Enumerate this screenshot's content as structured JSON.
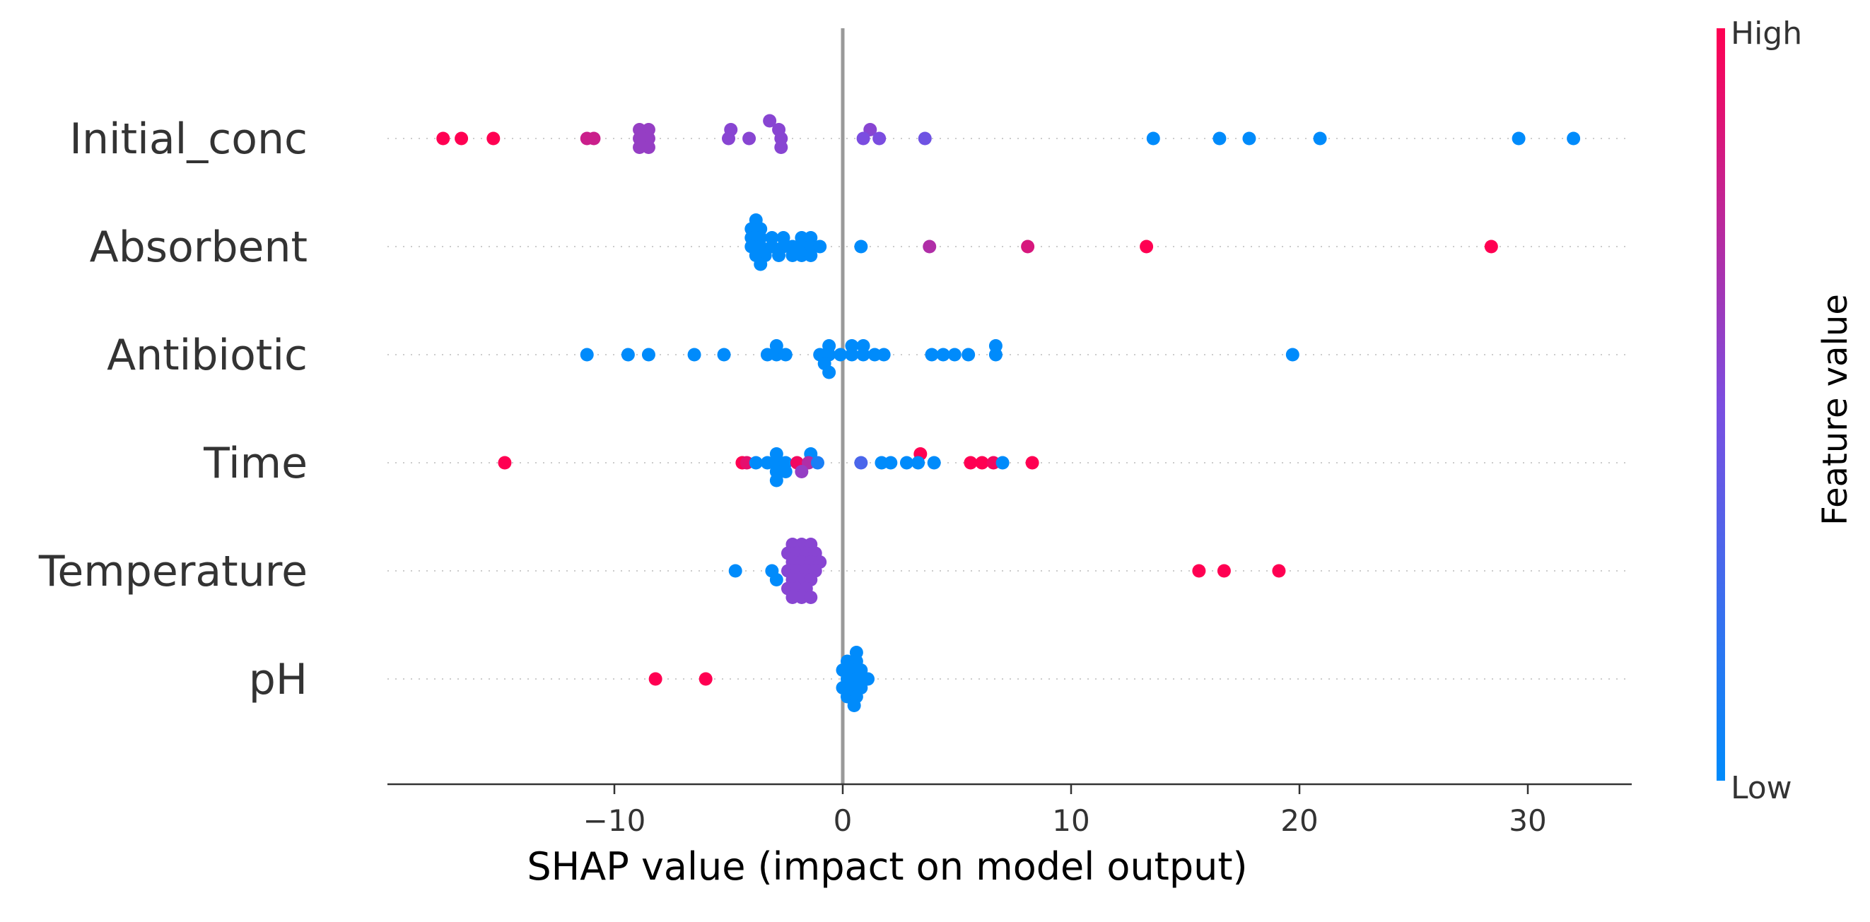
{
  "chart_data": {
    "type": "scatter",
    "subtype": "shap-beeswarm",
    "title": "",
    "xlabel": "SHAP value (impact on model output)",
    "ylabel": "",
    "xlim": [
      -20,
      35
    ],
    "xticks": [
      -10,
      0,
      10,
      20,
      30
    ],
    "xtick_labels": [
      "−10",
      "0",
      "10",
      "20",
      "30"
    ],
    "grid": "dotted horizontal guide per feature",
    "colorbar": {
      "title": "Feature value",
      "high_label": "High",
      "low_label": "Low",
      "high_color": "#ff0052",
      "low_color": "#008bfb",
      "placement": "right"
    },
    "colors": {
      "high": "#ff0052",
      "low": "#008bfb",
      "zero_line": "#999999",
      "axis": "#333333",
      "guide": "#cccccc"
    },
    "features": [
      {
        "name": "Initial_conc",
        "points": [
          {
            "x": -17.5,
            "v": 1.0,
            "o": 0
          },
          {
            "x": -16.7,
            "v": 1.0,
            "o": 0
          },
          {
            "x": -15.3,
            "v": 1.0,
            "o": 0
          },
          {
            "x": -11.2,
            "v": 0.8,
            "o": 0
          },
          {
            "x": -10.9,
            "v": 0.8,
            "o": 0
          },
          {
            "x": -8.9,
            "v": 0.6,
            "o": -1
          },
          {
            "x": -8.5,
            "v": 0.6,
            "o": -1
          },
          {
            "x": -8.9,
            "v": 0.6,
            "o": 0
          },
          {
            "x": -8.5,
            "v": 0.6,
            "o": 0
          },
          {
            "x": -8.9,
            "v": 0.6,
            "o": 1
          },
          {
            "x": -8.5,
            "v": 0.6,
            "o": 1
          },
          {
            "x": -4.9,
            "v": 0.55,
            "o": -1
          },
          {
            "x": -5.0,
            "v": 0.55,
            "o": 0
          },
          {
            "x": -4.1,
            "v": 0.55,
            "o": 0
          },
          {
            "x": -3.2,
            "v": 0.55,
            "o": -2
          },
          {
            "x": -2.8,
            "v": 0.55,
            "o": -1
          },
          {
            "x": -2.7,
            "v": 0.55,
            "o": 0
          },
          {
            "x": -2.7,
            "v": 0.55,
            "o": 1
          },
          {
            "x": 1.2,
            "v": 0.55,
            "o": -1
          },
          {
            "x": 0.9,
            "v": 0.5,
            "o": 0
          },
          {
            "x": 1.6,
            "v": 0.5,
            "o": 0
          },
          {
            "x": 3.6,
            "v": 0.45,
            "o": 0
          },
          {
            "x": 13.6,
            "v": 0.0,
            "o": 0
          },
          {
            "x": 16.5,
            "v": 0.0,
            "o": 0
          },
          {
            "x": 17.8,
            "v": 0.0,
            "o": 0
          },
          {
            "x": 20.9,
            "v": 0.0,
            "o": 0
          },
          {
            "x": 29.6,
            "v": 0.0,
            "o": 0
          },
          {
            "x": 32.0,
            "v": 0.0,
            "o": 0
          }
        ]
      },
      {
        "name": "Absorbent",
        "points": [
          {
            "x": -3.8,
            "v": 0.0,
            "o": -3
          },
          {
            "x": -4.0,
            "v": 0.0,
            "o": -2
          },
          {
            "x": -3.6,
            "v": 0.0,
            "o": -2
          },
          {
            "x": -4.0,
            "v": 0.0,
            "o": -1
          },
          {
            "x": -3.6,
            "v": 0.0,
            "o": -1
          },
          {
            "x": -3.1,
            "v": 0.0,
            "o": -1
          },
          {
            "x": -2.6,
            "v": 0.0,
            "o": -1
          },
          {
            "x": -1.8,
            "v": 0.0,
            "o": -1
          },
          {
            "x": -1.4,
            "v": 0.0,
            "o": -1
          },
          {
            "x": -4.0,
            "v": 0.0,
            "o": 0
          },
          {
            "x": -3.6,
            "v": 0.0,
            "o": 0
          },
          {
            "x": -3.1,
            "v": 0.0,
            "o": 0
          },
          {
            "x": -2.6,
            "v": 0.0,
            "o": 0
          },
          {
            "x": -2.2,
            "v": 0.0,
            "o": 0
          },
          {
            "x": -1.8,
            "v": 0.0,
            "o": 0
          },
          {
            "x": -1.4,
            "v": 0.0,
            "o": 0
          },
          {
            "x": -1.0,
            "v": 0.0,
            "o": 0
          },
          {
            "x": -3.8,
            "v": 0.0,
            "o": 1
          },
          {
            "x": -3.4,
            "v": 0.0,
            "o": 1
          },
          {
            "x": -2.8,
            "v": 0.0,
            "o": 1
          },
          {
            "x": -2.2,
            "v": 0.0,
            "o": 1
          },
          {
            "x": -1.8,
            "v": 0.0,
            "o": 1
          },
          {
            "x": -1.4,
            "v": 0.0,
            "o": 1
          },
          {
            "x": -3.6,
            "v": 0.0,
            "o": 2
          },
          {
            "x": 0.8,
            "v": 0.0,
            "o": 0
          },
          {
            "x": 3.8,
            "v": 0.7,
            "o": 0
          },
          {
            "x": 8.1,
            "v": 0.85,
            "o": 0
          },
          {
            "x": 13.3,
            "v": 1.0,
            "o": 0
          },
          {
            "x": 28.4,
            "v": 1.0,
            "o": 0
          }
        ]
      },
      {
        "name": "Antibiotic",
        "points": [
          {
            "x": -11.2,
            "v": 0.0,
            "o": 0
          },
          {
            "x": -9.4,
            "v": 0.0,
            "o": 0
          },
          {
            "x": -8.5,
            "v": 0.0,
            "o": 0
          },
          {
            "x": -6.5,
            "v": 0.0,
            "o": 0
          },
          {
            "x": -5.2,
            "v": 0.0,
            "o": 0
          },
          {
            "x": -2.9,
            "v": 0.0,
            "o": -1
          },
          {
            "x": -3.3,
            "v": 0.0,
            "o": 0
          },
          {
            "x": -2.9,
            "v": 0.0,
            "o": 0
          },
          {
            "x": -2.5,
            "v": 0.0,
            "o": 0
          },
          {
            "x": -0.6,
            "v": 0.0,
            "o": -1
          },
          {
            "x": 0.4,
            "v": 0.0,
            "o": -1
          },
          {
            "x": 0.9,
            "v": 0.0,
            "o": -1
          },
          {
            "x": -1.0,
            "v": 0.0,
            "o": 0
          },
          {
            "x": -0.6,
            "v": 0.0,
            "o": 0
          },
          {
            "x": -0.1,
            "v": 0.0,
            "o": 0
          },
          {
            "x": 0.4,
            "v": 0.0,
            "o": 0
          },
          {
            "x": 0.9,
            "v": 0.0,
            "o": 0
          },
          {
            "x": 1.4,
            "v": 0.0,
            "o": 0
          },
          {
            "x": 1.8,
            "v": 0.0,
            "o": 0
          },
          {
            "x": -0.8,
            "v": 0.0,
            "o": 1
          },
          {
            "x": -0.6,
            "v": 0.0,
            "o": 2
          },
          {
            "x": 3.9,
            "v": 0.0,
            "o": 0
          },
          {
            "x": 4.4,
            "v": 0.0,
            "o": 0
          },
          {
            "x": 4.9,
            "v": 0.0,
            "o": 0
          },
          {
            "x": 5.5,
            "v": 0.0,
            "o": 0
          },
          {
            "x": 6.7,
            "v": 0.0,
            "o": -1
          },
          {
            "x": 6.7,
            "v": 0.0,
            "o": 0
          },
          {
            "x": 19.7,
            "v": 0.0,
            "o": 0
          }
        ]
      },
      {
        "name": "Time",
        "points": [
          {
            "x": -14.8,
            "v": 1.0,
            "o": 0
          },
          {
            "x": -4.4,
            "v": 1.0,
            "o": 0
          },
          {
            "x": -4.2,
            "v": 0.9,
            "o": 0
          },
          {
            "x": -2.9,
            "v": 0.0,
            "o": -1
          },
          {
            "x": -1.4,
            "v": 0.0,
            "o": -1
          },
          {
            "x": -3.8,
            "v": 0.0,
            "o": 0
          },
          {
            "x": -3.3,
            "v": 0.0,
            "o": 0
          },
          {
            "x": -2.9,
            "v": 0.0,
            "o": 0
          },
          {
            "x": -2.5,
            "v": 0.0,
            "o": 0
          },
          {
            "x": -2.0,
            "v": 0.95,
            "o": 0
          },
          {
            "x": -1.5,
            "v": 0.7,
            "o": 0
          },
          {
            "x": -1.1,
            "v": 0.1,
            "o": 0
          },
          {
            "x": -2.9,
            "v": 0.0,
            "o": 1
          },
          {
            "x": -2.5,
            "v": 0.0,
            "o": 1
          },
          {
            "x": -1.8,
            "v": 0.6,
            "o": 1
          },
          {
            "x": -2.9,
            "v": 0.0,
            "o": 2
          },
          {
            "x": 0.8,
            "v": 0.3,
            "o": 0
          },
          {
            "x": 1.7,
            "v": 0.0,
            "o": 0
          },
          {
            "x": 2.1,
            "v": 0.0,
            "o": 0
          },
          {
            "x": 3.4,
            "v": 1.0,
            "o": -1
          },
          {
            "x": 2.8,
            "v": 0.0,
            "o": 0
          },
          {
            "x": 3.3,
            "v": 0.0,
            "o": 0
          },
          {
            "x": 4.0,
            "v": 0.0,
            "o": 0
          },
          {
            "x": 5.6,
            "v": 1.0,
            "o": 0
          },
          {
            "x": 6.1,
            "v": 1.0,
            "o": 0
          },
          {
            "x": 6.6,
            "v": 0.95,
            "o": 0
          },
          {
            "x": 7.0,
            "v": 0.0,
            "o": 0
          },
          {
            "x": 8.3,
            "v": 1.0,
            "o": 0
          }
        ]
      },
      {
        "name": "Temperature",
        "points": [
          {
            "x": -4.7,
            "v": 0.0,
            "o": 0
          },
          {
            "x": -3.1,
            "v": 0.0,
            "o": 0
          },
          {
            "x": -2.9,
            "v": 0.0,
            "o": 1
          },
          {
            "x": -2.2,
            "v": 0.55,
            "o": -3
          },
          {
            "x": -1.8,
            "v": 0.55,
            "o": -3
          },
          {
            "x": -1.4,
            "v": 0.55,
            "o": -3
          },
          {
            "x": -2.4,
            "v": 0.55,
            "o": -2
          },
          {
            "x": -2.0,
            "v": 0.55,
            "o": -2
          },
          {
            "x": -1.6,
            "v": 0.55,
            "o": -2
          },
          {
            "x": -1.2,
            "v": 0.55,
            "o": -2
          },
          {
            "x": -2.2,
            "v": 0.55,
            "o": -1
          },
          {
            "x": -1.8,
            "v": 0.55,
            "o": -1
          },
          {
            "x": -1.4,
            "v": 0.55,
            "o": -1
          },
          {
            "x": -1.0,
            "v": 0.55,
            "o": -1
          },
          {
            "x": -2.4,
            "v": 0.55,
            "o": 0
          },
          {
            "x": -2.0,
            "v": 0.55,
            "o": 0
          },
          {
            "x": -1.6,
            "v": 0.55,
            "o": 0
          },
          {
            "x": -1.2,
            "v": 0.55,
            "o": 0
          },
          {
            "x": -2.2,
            "v": 0.55,
            "o": 1
          },
          {
            "x": -1.8,
            "v": 0.55,
            "o": 1
          },
          {
            "x": -1.4,
            "v": 0.55,
            "o": 1
          },
          {
            "x": -2.4,
            "v": 0.55,
            "o": 2
          },
          {
            "x": -2.0,
            "v": 0.55,
            "o": 2
          },
          {
            "x": -1.6,
            "v": 0.55,
            "o": 2
          },
          {
            "x": -2.2,
            "v": 0.55,
            "o": 3
          },
          {
            "x": -1.8,
            "v": 0.55,
            "o": 3
          },
          {
            "x": -1.4,
            "v": 0.55,
            "o": 3
          },
          {
            "x": 15.6,
            "v": 1.0,
            "o": 0
          },
          {
            "x": 16.7,
            "v": 1.0,
            "o": 0
          },
          {
            "x": 19.1,
            "v": 1.0,
            "o": 0
          }
        ]
      },
      {
        "name": "pH",
        "points": [
          {
            "x": -8.2,
            "v": 1.0,
            "o": 0
          },
          {
            "x": -6.0,
            "v": 1.0,
            "o": 0
          },
          {
            "x": 0.6,
            "v": 0.0,
            "o": -3
          },
          {
            "x": 0.2,
            "v": 0.0,
            "o": -2
          },
          {
            "x": 0.6,
            "v": 0.0,
            "o": -2
          },
          {
            "x": 0.0,
            "v": 0.0,
            "o": -1
          },
          {
            "x": 0.4,
            "v": 0.0,
            "o": -1
          },
          {
            "x": 0.8,
            "v": 0.0,
            "o": -1
          },
          {
            "x": 0.2,
            "v": 0.0,
            "o": 0
          },
          {
            "x": 0.6,
            "v": 0.0,
            "o": 0
          },
          {
            "x": 1.1,
            "v": 0.0,
            "o": 0
          },
          {
            "x": 0.0,
            "v": 0.0,
            "o": 1
          },
          {
            "x": 0.4,
            "v": 0.0,
            "o": 1
          },
          {
            "x": 0.8,
            "v": 0.0,
            "o": 1
          },
          {
            "x": 0.2,
            "v": 0.0,
            "o": 2
          },
          {
            "x": 0.6,
            "v": 0.0,
            "o": 2
          },
          {
            "x": 0.5,
            "v": 0.0,
            "o": 3
          }
        ]
      }
    ]
  }
}
